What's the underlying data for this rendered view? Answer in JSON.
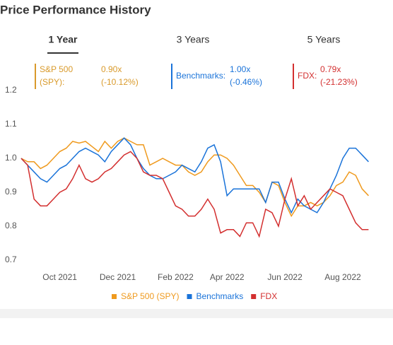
{
  "chart_data": {
    "type": "line",
    "title": "Price Performance History",
    "tabs": [
      "1 Year",
      "3 Years",
      "5 Years"
    ],
    "active_tab": 0,
    "summary": [
      {
        "label": "S&P 500 (SPY):",
        "ratio": "0.90x",
        "change": "(-10.12%)",
        "color": "#d99a2b"
      },
      {
        "label": "Benchmarks:",
        "ratio": "1.00x",
        "change": "(-0.46%)",
        "color": "#1a73d9"
      },
      {
        "label": "FDX:",
        "ratio": "0.79x",
        "change": "(-21.23%)",
        "color": "#d32f2f"
      }
    ],
    "categories": [
      null,
      null,
      null,
      null,
      null,
      null,
      "Oct 2021",
      null,
      null,
      null,
      null,
      null,
      null,
      null,
      null,
      "Dec 2021",
      null,
      null,
      null,
      null,
      null,
      null,
      null,
      null,
      "Feb 2022",
      null,
      null,
      null,
      null,
      null,
      null,
      null,
      "Apr 2022",
      null,
      null,
      null,
      null,
      null,
      null,
      null,
      null,
      "Jun 2022",
      null,
      null,
      null,
      null,
      null,
      null,
      null,
      null,
      "Aug 2022",
      null,
      null,
      null,
      null
    ],
    "ylim": [
      0.7,
      1.2
    ],
    "yticks": [
      0.7,
      0.8,
      0.9,
      {
        "value": 1.0,
        "label": "1.0"
      },
      1.1,
      1.2
    ],
    "grid": false,
    "series": [
      {
        "name": "S&P 500 (SPY)",
        "color": "#ef9a1e",
        "values": [
          1.0,
          0.99,
          0.99,
          0.97,
          0.98,
          1.0,
          1.02,
          1.03,
          1.05,
          1.045,
          1.05,
          1.035,
          1.02,
          1.05,
          1.03,
          1.05,
          1.06,
          1.05,
          1.04,
          1.04,
          0.98,
          0.99,
          1.0,
          0.99,
          0.98,
          0.98,
          0.96,
          0.95,
          0.96,
          0.99,
          1.01,
          1.01,
          1.0,
          0.98,
          0.95,
          0.92,
          0.92,
          0.9,
          0.87,
          0.93,
          0.92,
          0.87,
          0.83,
          0.86,
          0.86,
          0.87,
          0.86,
          0.87,
          0.89,
          0.92,
          0.93,
          0.96,
          0.95,
          0.91,
          0.89
        ]
      },
      {
        "name": "Benchmarks",
        "color": "#1a73d9",
        "values": [
          1.0,
          0.98,
          0.96,
          0.94,
          0.93,
          0.95,
          0.97,
          0.98,
          1.0,
          1.02,
          1.03,
          1.02,
          1.01,
          0.99,
          1.02,
          1.04,
          1.06,
          1.04,
          1.0,
          0.97,
          0.95,
          0.94,
          0.94,
          0.95,
          0.96,
          0.98,
          0.97,
          0.96,
          0.99,
          1.03,
          1.04,
          0.99,
          0.89,
          0.91,
          0.91,
          0.91,
          0.91,
          0.91,
          0.87,
          0.93,
          0.93,
          0.88,
          0.84,
          0.88,
          0.86,
          0.85,
          0.84,
          0.87,
          0.91,
          0.95,
          1.0,
          1.03,
          1.03,
          1.01,
          0.99
        ]
      },
      {
        "name": "FDX",
        "color": "#d32f2f",
        "values": [
          1.0,
          0.98,
          0.88,
          0.86,
          0.86,
          0.88,
          0.9,
          0.91,
          0.94,
          0.98,
          0.94,
          0.93,
          0.94,
          0.96,
          0.97,
          0.99,
          1.01,
          1.02,
          1.0,
          0.96,
          0.95,
          0.95,
          0.94,
          0.9,
          0.86,
          0.85,
          0.83,
          0.83,
          0.85,
          0.88,
          0.85,
          0.78,
          0.79,
          0.79,
          0.77,
          0.81,
          0.81,
          0.77,
          0.85,
          0.84,
          0.8,
          0.88,
          0.94,
          0.86,
          0.89,
          0.85,
          0.87,
          0.89,
          0.91,
          0.9,
          0.89,
          0.85,
          0.81,
          0.79,
          0.79
        ]
      }
    ]
  }
}
